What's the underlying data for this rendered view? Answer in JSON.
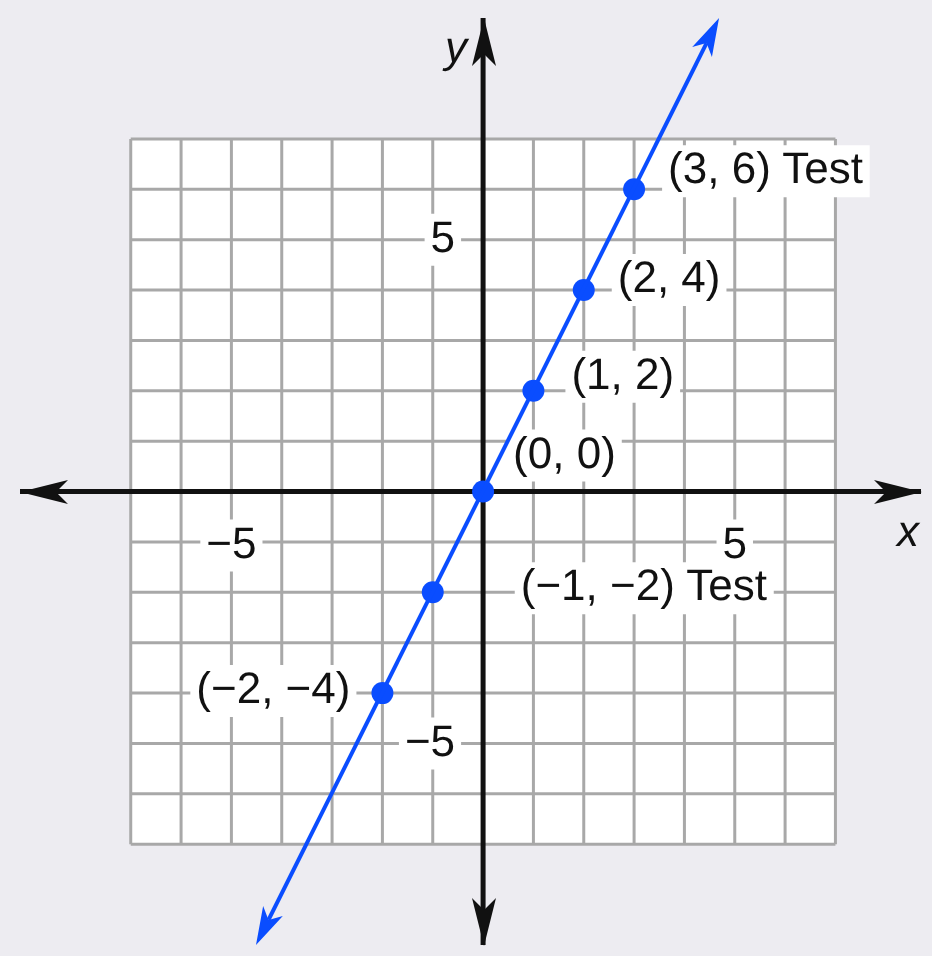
{
  "chart_data": {
    "type": "scatter",
    "xlabel": "x",
    "ylabel": "y",
    "xlim": [
      -9.2,
      8.7
    ],
    "ylim": [
      -9,
      9.4
    ],
    "xticks": [
      {
        "value": -7,
        "label": null
      },
      {
        "value": -6,
        "label": null
      },
      {
        "value": -5,
        "label": "−5"
      },
      {
        "value": -4,
        "label": null
      },
      {
        "value": -3,
        "label": null
      },
      {
        "value": -2,
        "label": null
      },
      {
        "value": -1,
        "label": null
      },
      {
        "value": 0,
        "label": null
      },
      {
        "value": 1,
        "label": null
      },
      {
        "value": 2,
        "label": null
      },
      {
        "value": 3,
        "label": null
      },
      {
        "value": 4,
        "label": null
      },
      5,
      {
        "value": 6,
        "label": null
      },
      {
        "value": 7,
        "label": null
      }
    ],
    "yticks": [
      {
        "value": -7,
        "label": null
      },
      {
        "value": -6,
        "label": null
      },
      {
        "value": -5,
        "label": "−5"
      },
      {
        "value": -4,
        "label": null
      },
      {
        "value": -3,
        "label": null
      },
      {
        "value": -2,
        "label": null
      },
      {
        "value": -1,
        "label": null
      },
      {
        "value": 0,
        "label": null
      },
      {
        "value": 1,
        "label": null
      },
      {
        "value": 2,
        "label": null
      },
      {
        "value": 3,
        "label": null
      },
      {
        "value": 4,
        "label": null
      },
      5,
      {
        "value": 6,
        "label": null
      },
      {
        "value": 7,
        "label": null
      }
    ],
    "grid": true,
    "marker": "circle",
    "series": [
      {
        "color": "#0a4dff",
        "x": [
          -2,
          -1,
          0,
          1,
          2,
          3
        ],
        "values": [
          -4,
          -2,
          0,
          2,
          4,
          6
        ]
      }
    ],
    "annotations": [
      {
        "text": "(3, 6) Test",
        "x": 3,
        "y": 6
      },
      {
        "text": "(2, 4)",
        "x": 2,
        "y": 4
      },
      {
        "text": "(1, 2)",
        "x": 1,
        "y": 2
      },
      {
        "text": "(0, 0)",
        "x": 0,
        "y": 0
      },
      {
        "text": "(−1, −2) Test",
        "x": -1,
        "y": -2
      },
      {
        "text": "(−2, −4)",
        "x": -2,
        "y": -4
      }
    ]
  }
}
